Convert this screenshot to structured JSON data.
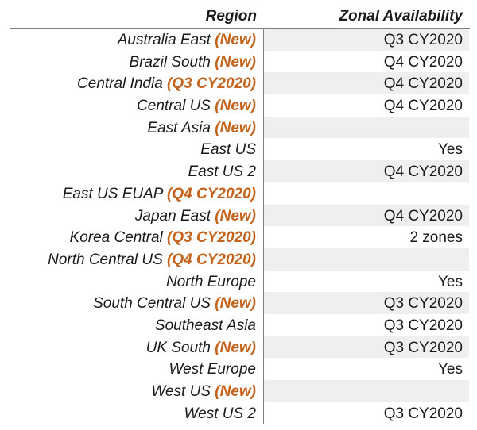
{
  "header": {
    "region_label": "Region",
    "availability_label": "Zonal Availability"
  },
  "colors": {
    "tag": "#c5621b",
    "row_shade": "#efefef"
  },
  "rows": [
    {
      "name": "Australia East",
      "tag": "(New)",
      "availability": "Q3 CY2020"
    },
    {
      "name": "Brazil South",
      "tag": "(New)",
      "availability": "Q4 CY2020"
    },
    {
      "name": "Central India",
      "tag": "(Q3 CY2020)",
      "availability": "Q4 CY2020"
    },
    {
      "name": "Central US",
      "tag": "(New)",
      "availability": "Q4 CY2020"
    },
    {
      "name": "East Asia",
      "tag": "(New)",
      "availability": ""
    },
    {
      "name": "East US",
      "tag": "",
      "availability": "Yes"
    },
    {
      "name": "East US 2",
      "tag": "",
      "availability": "Q4 CY2020"
    },
    {
      "name": "East US EUAP",
      "tag": "(Q4 CY2020)",
      "availability": ""
    },
    {
      "name": "Japan East",
      "tag": "(New)",
      "availability": "Q4 CY2020"
    },
    {
      "name": "Korea Central",
      "tag": "(Q3 CY2020)",
      "availability": "2 zones"
    },
    {
      "name": "North Central US",
      "tag": "(Q4 CY2020)",
      "availability": ""
    },
    {
      "name": "North Europe",
      "tag": "",
      "availability": "Yes"
    },
    {
      "name": "South Central US",
      "tag": "(New)",
      "availability": "Q3 CY2020"
    },
    {
      "name": "Southeast Asia",
      "tag": "",
      "availability": "Q3 CY2020"
    },
    {
      "name": "UK South",
      "tag": "(New)",
      "availability": "Q3 CY2020"
    },
    {
      "name": "West Europe",
      "tag": "",
      "availability": "Yes"
    },
    {
      "name": "West US",
      "tag": "(New)",
      "availability": ""
    },
    {
      "name": "West US 2",
      "tag": "",
      "availability": "Q3 CY2020"
    }
  ]
}
